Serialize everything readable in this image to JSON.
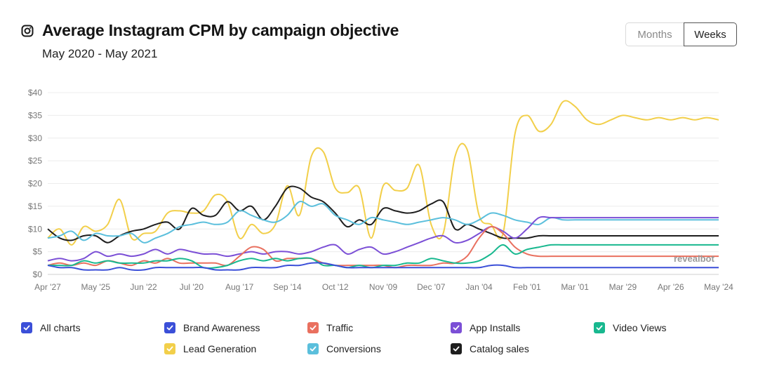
{
  "header": {
    "title": "Average Instagram CPM by campaign objective",
    "subtitle": "May 2020 - May 2021",
    "icon": "instagram-icon"
  },
  "toggle": {
    "months_label": "Months",
    "weeks_label": "Weeks",
    "selected": "Weeks"
  },
  "watermark": "revealbot",
  "legend": [
    {
      "label": "All charts",
      "color": "#3b4fd8",
      "checked": true
    },
    {
      "label": "Brand Awareness",
      "color": "#3b4fd8",
      "checked": true
    },
    {
      "label": "Traffic",
      "color": "#e9705f",
      "checked": true
    },
    {
      "label": "App Installs",
      "color": "#7b4fd6",
      "checked": true
    },
    {
      "label": "Video Views",
      "color": "#18b88f",
      "checked": true
    },
    {
      "label": "Lead Generation",
      "color": "#f2cf4a",
      "checked": true
    },
    {
      "label": "Conversions",
      "color": "#5bbfdc",
      "checked": true
    },
    {
      "label": "Catalog sales",
      "color": "#1e1e1e",
      "checked": true
    }
  ],
  "chart_data": {
    "type": "line",
    "x_ticks": [
      "Apr '27",
      "May '25",
      "Jun '22",
      "Jul '20",
      "Aug '17",
      "Sep '14",
      "Oct '12",
      "Nov '09",
      "Dec '07",
      "Jan '04",
      "Feb '01",
      "Mar '01",
      "Mar '29",
      "Apr '26",
      "May '24"
    ],
    "y_ticks": [
      "$0",
      "$5",
      "$10",
      "$15",
      "$20",
      "$25",
      "$30",
      "$35",
      "$40"
    ],
    "ylim": [
      0,
      40
    ],
    "grid": true,
    "x_count": 57,
    "series": [
      {
        "name": "Lead Generation",
        "color": "#f2cf4a",
        "values": [
          8,
          10,
          6.5,
          10.5,
          9.5,
          11,
          16.5,
          8,
          9,
          9.5,
          13.5,
          14,
          13.5,
          14,
          17.5,
          16,
          8,
          11,
          9,
          11,
          19.5,
          13,
          26,
          27,
          19,
          18,
          19,
          8,
          19.5,
          18.5,
          19,
          24,
          11,
          9,
          26,
          27.5,
          13,
          11,
          9,
          31,
          35,
          31.5,
          33,
          38,
          37,
          34,
          33,
          34,
          35,
          34.5,
          34,
          34.5,
          34,
          34.5,
          34,
          34.5,
          34
        ]
      },
      {
        "name": "Catalog sales",
        "color": "#1e1e1e",
        "values": [
          10,
          8,
          7.5,
          8.5,
          8.5,
          7,
          8.5,
          9.5,
          10,
          11,
          11.5,
          10,
          14.5,
          13,
          13,
          16,
          14,
          15,
          12,
          15,
          19,
          19,
          17,
          16,
          13.5,
          10.5,
          12,
          11,
          14.5,
          14,
          13.5,
          14,
          15.5,
          16,
          10,
          11,
          10,
          9,
          8,
          8,
          8,
          8.5,
          8.5,
          8.5,
          8.5,
          8.5,
          8.5,
          8.5,
          8.5,
          8.5,
          8.5,
          8.5,
          8.5,
          8.5,
          8.5,
          8.5,
          8.5
        ]
      },
      {
        "name": "Conversions",
        "color": "#5bbfdc",
        "values": [
          8,
          8.5,
          9.5,
          7.5,
          9,
          8.5,
          8.5,
          9,
          7,
          8,
          9,
          10.5,
          11,
          11.5,
          11,
          11.5,
          14,
          13,
          12,
          11.5,
          13,
          16,
          15,
          15.5,
          13,
          12,
          11,
          12.5,
          12,
          11.5,
          11,
          11.5,
          12,
          12.5,
          12,
          11,
          12,
          13.5,
          13,
          12,
          11.5,
          11,
          12.5,
          12,
          12,
          12,
          12,
          12,
          12,
          12,
          12,
          12,
          12,
          12,
          12,
          12,
          12
        ]
      },
      {
        "name": "App Installs",
        "color": "#7b4fd6",
        "values": [
          3,
          3.5,
          3,
          3.5,
          5,
          4,
          4.5,
          4,
          4.5,
          5.5,
          4.5,
          5.5,
          5,
          4.5,
          4.5,
          4,
          4.5,
          5,
          4.5,
          5,
          5,
          4.5,
          5,
          6,
          6.5,
          4.5,
          5.5,
          6,
          4.5,
          5,
          6,
          7,
          8,
          8.5,
          7,
          7.5,
          9,
          10.5,
          9.5,
          8,
          10,
          12.5,
          12.5,
          12.5,
          12.5,
          12.5,
          12.5,
          12.5,
          12.5,
          12.5,
          12.5,
          12.5,
          12.5,
          12.5,
          12.5,
          12.5,
          12.5
        ]
      },
      {
        "name": "Traffic",
        "color": "#e9705f",
        "values": [
          2,
          2.5,
          2,
          2.5,
          2,
          3,
          2.5,
          2,
          3,
          2.5,
          3.5,
          2.5,
          2.5,
          2.5,
          2.5,
          2,
          4,
          6,
          5.5,
          3,
          3.5,
          3.5,
          3.5,
          2.5,
          2,
          2,
          2,
          2,
          2,
          1.5,
          2,
          2,
          2,
          2.5,
          2.5,
          4,
          8,
          10.5,
          9,
          6,
          4.5,
          4,
          4,
          4,
          4,
          4,
          4,
          4,
          4,
          4,
          4,
          4,
          4,
          4,
          4,
          4,
          4
        ]
      },
      {
        "name": "Video Views",
        "color": "#18b88f",
        "values": [
          2,
          2,
          2,
          3,
          2.5,
          3,
          2.5,
          2.5,
          2.5,
          3,
          3,
          3.5,
          3,
          1.5,
          1.5,
          2,
          3,
          3.5,
          3,
          3.5,
          3,
          3.5,
          3.5,
          2,
          2,
          1.5,
          2,
          1.5,
          2,
          2,
          2.5,
          2.5,
          3.5,
          3,
          2.5,
          2.5,
          3,
          4.5,
          6.5,
          4.5,
          5.5,
          6,
          6.5,
          6.5,
          6.5,
          6.5,
          6.5,
          6.5,
          6.5,
          6.5,
          6.5,
          6.5,
          6.5,
          6.5,
          6.5,
          6.5,
          6.5
        ]
      },
      {
        "name": "Brand Awareness",
        "color": "#3b4fd8",
        "values": [
          2,
          1.5,
          1.5,
          1,
          1,
          1,
          1.5,
          1,
          1,
          1.5,
          1.5,
          1.5,
          1.5,
          1.5,
          1,
          1,
          1,
          1.5,
          1.5,
          1.5,
          2,
          2,
          2.5,
          2.5,
          2,
          1.5,
          1.5,
          1.5,
          1.5,
          1.5,
          1.5,
          1.5,
          1.5,
          1.5,
          1.5,
          1.5,
          1.5,
          2,
          2,
          1.5,
          1.5,
          1.5,
          1.5,
          1.5,
          1.5,
          1.5,
          1.5,
          1.5,
          1.5,
          1.5,
          1.5,
          1.5,
          1.5,
          1.5,
          1.5,
          1.5,
          1.5
        ]
      }
    ]
  }
}
